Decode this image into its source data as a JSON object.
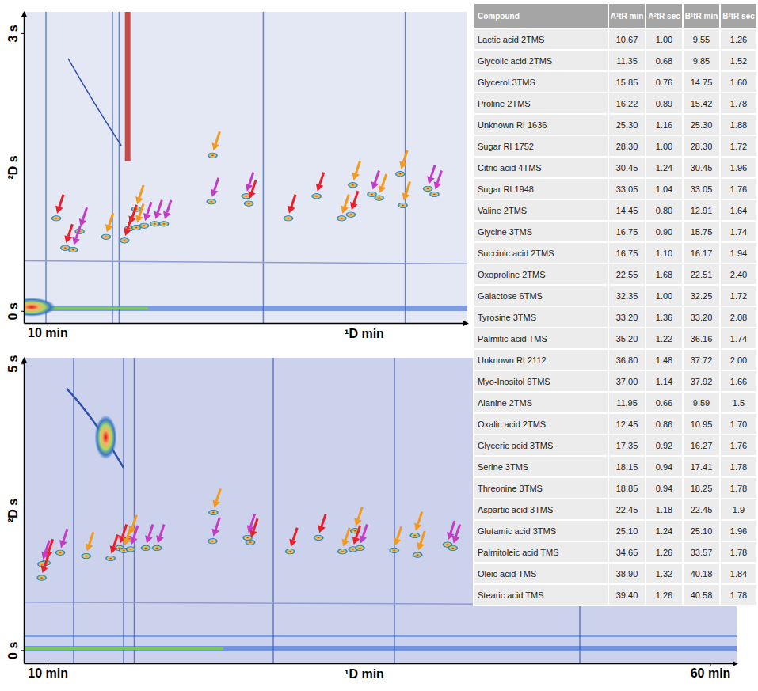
{
  "chart_data": [
    {
      "type": "scatter",
      "x_label": "¹D min",
      "y_label": "²D s",
      "xlim": [
        8.2,
        41.9
      ],
      "ylim": [
        -0.13,
        3.23
      ],
      "xticks": [
        {
          "value": 10,
          "label": "10 min"
        }
      ],
      "yticks": [
        {
          "value": 0,
          "label": "0 s"
        },
        {
          "value": 3,
          "label": "3 s"
        }
      ],
      "series": [
        {
          "marker": "arrow",
          "x": [
            10.67,
            11.35,
            15.85,
            16.22,
            25.3,
            28.3,
            30.45,
            33.05,
            14.45,
            16.75,
            16.75,
            22.55,
            32.35,
            33.2,
            35.2,
            36.8,
            37.0,
            11.95,
            12.45,
            17.35,
            18.15,
            18.85,
            22.45,
            25.1,
            34.65,
            38.9,
            39.4
          ],
          "values": [
            1.0,
            0.68,
            0.76,
            0.89,
            1.16,
            1.0,
            1.24,
            1.04,
            0.8,
            0.9,
            1.1,
            1.68,
            1.0,
            1.36,
            1.22,
            1.48,
            1.14,
            0.66,
            0.86,
            0.92,
            0.94,
            0.94,
            1.18,
            1.24,
            1.26,
            1.32,
            1.26
          ],
          "colors": [
            "#e8202a",
            "#e8202a",
            "#e8202a",
            "#e8202a",
            "#e8202a",
            "#e8202a",
            "#e8202a",
            "#e8202a",
            "#f39a1e",
            "#f39a1e",
            "#f39a1e",
            "#f39a1e",
            "#f39a1e",
            "#f39a1e",
            "#f39a1e",
            "#f39a1e",
            "#f39a1e",
            "#c43cc4",
            "#c43cc4",
            "#c43cc4",
            "#c43cc4",
            "#c43cc4",
            "#c43cc4",
            "#c43cc4",
            "#c43cc4",
            "#c43cc4",
            "#c43cc4"
          ]
        }
      ]
    },
    {
      "type": "scatter",
      "x_label": "¹D min",
      "y_label": "²D s",
      "xlim": [
        8.2,
        62
      ],
      "ylim": [
        -0.23,
        5.1
      ],
      "xticks": [
        {
          "value": 10,
          "label": "10 min"
        },
        {
          "value": 60,
          "label": "60 min"
        }
      ],
      "yticks": [
        {
          "value": 0,
          "label": "0 s"
        },
        {
          "value": 5,
          "label": "5 s"
        }
      ],
      "series": [
        {
          "marker": "arrow",
          "x": [
            9.55,
            9.85,
            14.75,
            15.42,
            25.3,
            28.3,
            30.45,
            33.05,
            12.91,
            15.75,
            16.17,
            22.51,
            32.25,
            33.2,
            36.16,
            37.72,
            37.92,
            9.59,
            10.95,
            16.27,
            17.41,
            18.25,
            22.45,
            25.1,
            33.57,
            40.18,
            40.58
          ],
          "values": [
            1.26,
            1.52,
            1.6,
            1.78,
            1.88,
            1.72,
            1.96,
            1.76,
            1.64,
            1.74,
            1.94,
            2.4,
            1.72,
            2.08,
            1.74,
            2.0,
            1.66,
            1.5,
            1.7,
            1.76,
            1.78,
            1.78,
            1.9,
            1.96,
            1.78,
            1.84,
            1.78
          ],
          "colors": [
            "#e8202a",
            "#e8202a",
            "#e8202a",
            "#e8202a",
            "#e8202a",
            "#e8202a",
            "#e8202a",
            "#e8202a",
            "#f39a1e",
            "#f39a1e",
            "#f39a1e",
            "#f39a1e",
            "#f39a1e",
            "#f39a1e",
            "#f39a1e",
            "#f39a1e",
            "#f39a1e",
            "#c43cc4",
            "#c43cc4",
            "#c43cc4",
            "#c43cc4",
            "#c43cc4",
            "#c43cc4",
            "#c43cc4",
            "#c43cc4",
            "#c43cc4",
            "#c43cc4"
          ]
        }
      ]
    }
  ],
  "table": {
    "header": [
      "Compound",
      "A¹tR min",
      "A²tR sec",
      "B¹tR min",
      "B²tR sec"
    ],
    "rows": [
      [
        "Lactic acid 2TMS",
        "10.67",
        "1.00",
        "9.55",
        "1.26"
      ],
      [
        "Glycolic acid 2TMS",
        "11.35",
        "0.68",
        "9.85",
        "1.52"
      ],
      [
        "Glycerol 3TMS",
        "15.85",
        "0.76",
        "14.75",
        "1.60"
      ],
      [
        "Proline 2TMS",
        "16.22",
        "0.89",
        "15.42",
        "1.78"
      ],
      [
        "Unknown RI 1636",
        "25.30",
        "1.16",
        "25.30",
        "1.88"
      ],
      [
        "Sugar RI 1752",
        "28.30",
        "1.00",
        "28.30",
        "1.72"
      ],
      [
        "Citric acid 4TMS",
        "30.45",
        "1.24",
        "30.45",
        "1.96"
      ],
      [
        "Sugar RI 1948",
        "33.05",
        "1.04",
        "33.05",
        "1.76"
      ],
      [
        "Valine 2TMS",
        "14.45",
        "0.80",
        "12.91",
        "1.64"
      ],
      [
        "Glycine 3TMS",
        "16.75",
        "0.90",
        "15.75",
        "1.74"
      ],
      [
        "Succinic acid 2TMS",
        "16.75",
        "1.10",
        "16.17",
        "1.94"
      ],
      [
        "Oxoproline 2TMS",
        "22.55",
        "1.68",
        "22.51",
        "2.40"
      ],
      [
        "Galactose 6TMS",
        "32.35",
        "1.00",
        "32.25",
        "1.72"
      ],
      [
        "Tyrosine 3TMS",
        "33.20",
        "1.36",
        "33.20",
        "2.08"
      ],
      [
        "Palmitic acid TMS",
        "35.20",
        "1.22",
        "36.16",
        "1.74"
      ],
      [
        "Unknown RI 2112",
        "36.80",
        "1.48",
        "37.72",
        "2.00"
      ],
      [
        "Myo-Inositol 6TMS",
        "37.00",
        "1.14",
        "37.92",
        "1.66"
      ],
      [
        "Alanine 2TMS",
        "11.95",
        "0.66",
        "9.59",
        "1.5"
      ],
      [
        "Oxalic acid 2TMS",
        "12.45",
        "0.86",
        "10.95",
        "1.70"
      ],
      [
        "Glyceric acid 3TMS",
        "17.35",
        "0.92",
        "16.27",
        "1.76"
      ],
      [
        "Serine 3TMS",
        "18.15",
        "0.94",
        "17.41",
        "1.78"
      ],
      [
        "Threonine 3TMS",
        "18.85",
        "0.94",
        "18.25",
        "1.78"
      ],
      [
        "Aspartic acid 3TMS",
        "22.45",
        "1.18",
        "22.45",
        "1.9"
      ],
      [
        "Glutamic acid 3TMS",
        "25.10",
        "1.24",
        "25.10",
        "1.96"
      ],
      [
        "Palmitoleic acid TMS",
        "34.65",
        "1.26",
        "33.57",
        "1.78"
      ],
      [
        "Oleic acid TMS",
        "38.90",
        "1.32",
        "40.18",
        "1.84"
      ],
      [
        "Stearic acid TMS",
        "39.40",
        "1.26",
        "40.58",
        "1.78"
      ]
    ]
  }
}
